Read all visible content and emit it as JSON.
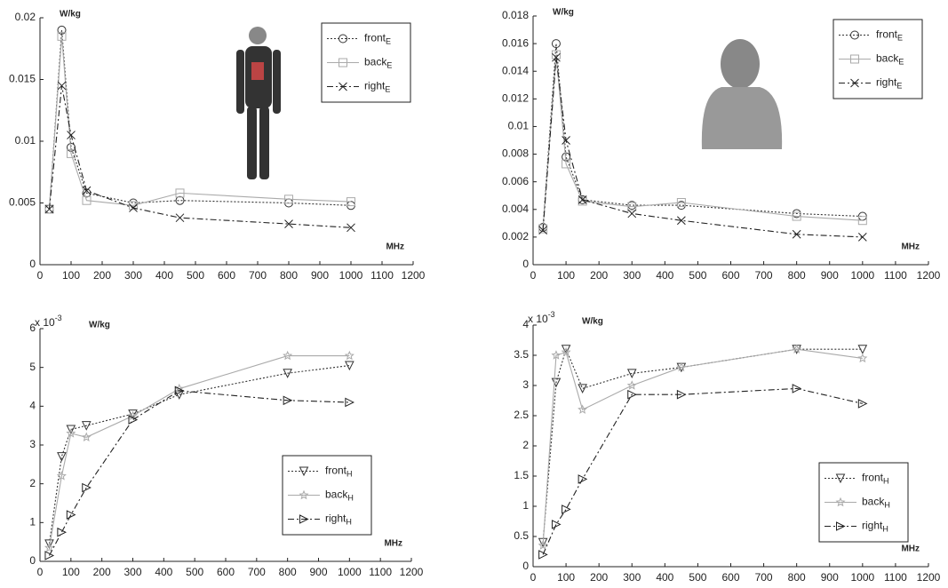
{
  "chart_data": [
    {
      "type": "line",
      "y_unit": "W/kg",
      "x_unit": "MHz",
      "legend": "upper right",
      "x": [
        30,
        70,
        100,
        150,
        300,
        450,
        800,
        1000
      ],
      "xlim": [
        0,
        1200
      ],
      "xticks": [
        0,
        100,
        200,
        300,
        400,
        500,
        600,
        700,
        800,
        900,
        1000,
        1100,
        1200
      ],
      "ylim": [
        0,
        0.02
      ],
      "yticks": [
        0,
        0.005,
        0.01,
        0.015,
        0.02
      ],
      "series": [
        {
          "name": "front",
          "subscript": "E",
          "color": "#333333",
          "style": "dotted",
          "marker": "circle",
          "values": [
            0.0045,
            0.019,
            0.0095,
            0.0058,
            0.005,
            0.0052,
            0.005,
            0.0048
          ]
        },
        {
          "name": "back",
          "subscript": "E",
          "color": "#aaaaaa",
          "style": "solid",
          "marker": "square",
          "values": [
            0.0045,
            0.0185,
            0.009,
            0.0052,
            0.0048,
            0.0058,
            0.0053,
            0.0051
          ]
        },
        {
          "name": "right",
          "subscript": "E",
          "color": "#222222",
          "style": "dashdot",
          "marker": "x",
          "values": [
            0.0045,
            0.0145,
            0.0105,
            0.006,
            0.0046,
            0.0038,
            0.0033,
            0.003
          ]
        }
      ]
    },
    {
      "type": "line",
      "y_unit": "W/kg",
      "x_unit": "MHz",
      "legend": "upper right",
      "x": [
        30,
        70,
        100,
        150,
        300,
        450,
        800,
        1000
      ],
      "xlim": [
        0,
        1200
      ],
      "xticks": [
        0,
        100,
        200,
        300,
        400,
        500,
        600,
        700,
        800,
        900,
        1000,
        1100,
        1200
      ],
      "ylim": [
        0,
        0.018
      ],
      "yticks": [
        0,
        0.002,
        0.004,
        0.006,
        0.008,
        0.01,
        0.012,
        0.014,
        0.016,
        0.018
      ],
      "series": [
        {
          "name": "front",
          "subscript": "E",
          "color": "#333333",
          "style": "dotted",
          "marker": "circle",
          "values": [
            0.0027,
            0.016,
            0.0078,
            0.0047,
            0.0043,
            0.0043,
            0.0037,
            0.0035
          ]
        },
        {
          "name": "back",
          "subscript": "E",
          "color": "#aaaaaa",
          "style": "solid",
          "marker": "square",
          "values": [
            0.0026,
            0.0152,
            0.0073,
            0.0046,
            0.0042,
            0.0045,
            0.0035,
            0.0032
          ]
        },
        {
          "name": "right",
          "subscript": "E",
          "color": "#222222",
          "style": "dashdot",
          "marker": "x",
          "values": [
            0.0025,
            0.015,
            0.009,
            0.0047,
            0.0037,
            0.0032,
            0.0022,
            0.002
          ]
        }
      ]
    },
    {
      "type": "line",
      "y_unit": "W/kg",
      "x_unit": "MHz",
      "legend": "lower right",
      "y_scale": {
        "base": "x 10",
        "exponent": "-3"
      },
      "x": [
        30,
        70,
        100,
        150,
        300,
        450,
        800,
        1000
      ],
      "xlim": [
        0,
        1200
      ],
      "xticks": [
        0,
        100,
        200,
        300,
        400,
        500,
        600,
        700,
        800,
        900,
        1000,
        1100,
        1200
      ],
      "ylim": [
        0,
        6
      ],
      "yticks": [
        0,
        1,
        2,
        3,
        4,
        5,
        6
      ],
      "series": [
        {
          "name": "front",
          "subscript": "H",
          "color": "#333333",
          "style": "dotted",
          "marker": "triangle-down",
          "values": [
            0.45,
            2.7,
            3.4,
            3.5,
            3.8,
            4.3,
            4.85,
            5.05
          ]
        },
        {
          "name": "back",
          "subscript": "H",
          "color": "#aaaaaa",
          "style": "solid",
          "marker": "star",
          "values": [
            0.35,
            2.2,
            3.3,
            3.2,
            3.75,
            4.45,
            5.3,
            5.3
          ]
        },
        {
          "name": "right",
          "subscript": "H",
          "color": "#222222",
          "style": "dashdot",
          "marker": "triangle-right",
          "values": [
            0.15,
            0.75,
            1.2,
            1.9,
            3.65,
            4.4,
            4.15,
            4.1
          ]
        }
      ]
    },
    {
      "type": "line",
      "y_unit": "W/kg",
      "x_unit": "MHz",
      "legend": "lower right",
      "y_scale": {
        "base": "x 10",
        "exponent": "-3"
      },
      "x": [
        30,
        70,
        100,
        150,
        300,
        450,
        800,
        1000
      ],
      "xlim": [
        0,
        1200
      ],
      "xticks": [
        0,
        100,
        200,
        300,
        400,
        500,
        600,
        700,
        800,
        900,
        1000,
        1100,
        1200
      ],
      "ylim": [
        0,
        4
      ],
      "yticks": [
        0,
        0.5,
        1,
        1.5,
        2,
        2.5,
        3,
        3.5,
        4
      ],
      "series": [
        {
          "name": "front",
          "subscript": "H",
          "color": "#333333",
          "style": "dotted",
          "marker": "triangle-down",
          "values": [
            0.4,
            3.05,
            3.6,
            2.95,
            3.2,
            3.3,
            3.6,
            3.6
          ]
        },
        {
          "name": "back",
          "subscript": "H",
          "color": "#aaaaaa",
          "style": "solid",
          "marker": "star",
          "values": [
            0.35,
            3.5,
            3.55,
            2.6,
            3.0,
            3.3,
            3.6,
            3.45
          ]
        },
        {
          "name": "right",
          "subscript": "H",
          "color": "#222222",
          "style": "dashdot",
          "marker": "triangle-right",
          "values": [
            0.2,
            0.7,
            0.95,
            1.45,
            2.85,
            2.85,
            2.95,
            2.7
          ]
        }
      ]
    }
  ]
}
